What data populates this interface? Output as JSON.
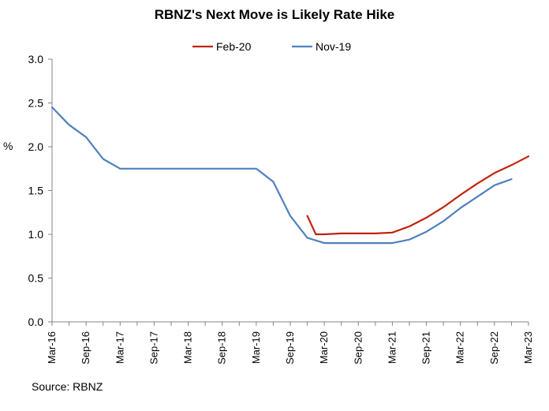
{
  "chart_data": {
    "type": "line",
    "title": "RBNZ's Next Move is Likely Rate Hike",
    "ylabel": "%",
    "xlabel": "",
    "ylim": [
      0,
      3.0
    ],
    "yticks": [
      "0.0",
      "0.5",
      "1.0",
      "1.5",
      "2.0",
      "2.5",
      "3.0"
    ],
    "ytick_values": [
      0,
      0.5,
      1.0,
      1.5,
      2.0,
      2.5,
      3.0
    ],
    "xrange_quarters": [
      0,
      28
    ],
    "xticks": [
      {
        "label": "Mar-16",
        "q": 0
      },
      {
        "label": "Sep-16",
        "q": 2
      },
      {
        "label": "Mar-17",
        "q": 4
      },
      {
        "label": "Sep-17",
        "q": 6
      },
      {
        "label": "Mar-18",
        "q": 8
      },
      {
        "label": "Sep-18",
        "q": 10
      },
      {
        "label": "Mar-19",
        "q": 12
      },
      {
        "label": "Sep-19",
        "q": 14
      },
      {
        "label": "Mar-20",
        "q": 16
      },
      {
        "label": "Sep-20",
        "q": 18
      },
      {
        "label": "Mar-21",
        "q": 20
      },
      {
        "label": "Sep-21",
        "q": 22
      },
      {
        "label": "Mar-22",
        "q": 24
      },
      {
        "label": "Sep-22",
        "q": 26
      },
      {
        "label": "Mar-23",
        "q": 28
      }
    ],
    "legend": "top-center",
    "series": [
      {
        "name": "Feb-20",
        "color": "#c0230f",
        "x": [
          15,
          15.5,
          16,
          17,
          18,
          19,
          20,
          21,
          22,
          23,
          24,
          25,
          26,
          27,
          28
        ],
        "values": [
          1.21,
          1.0,
          1.0,
          1.01,
          1.01,
          1.01,
          1.02,
          1.09,
          1.19,
          1.31,
          1.45,
          1.58,
          1.7,
          1.79,
          1.89
        ]
      },
      {
        "name": "Nov-19",
        "color": "#4f81bd",
        "x": [
          0,
          1,
          2,
          3,
          4,
          5,
          6,
          7,
          8,
          9,
          10,
          11,
          12,
          13,
          14,
          15,
          16,
          17,
          18,
          19,
          20,
          21,
          22,
          23,
          24,
          25,
          26,
          27
        ],
        "values": [
          2.45,
          2.25,
          2.11,
          1.86,
          1.75,
          1.75,
          1.75,
          1.75,
          1.75,
          1.75,
          1.75,
          1.75,
          1.75,
          1.6,
          1.21,
          0.96,
          0.9,
          0.9,
          0.9,
          0.9,
          0.9,
          0.94,
          1.03,
          1.15,
          1.3,
          1.43,
          1.56,
          1.63
        ]
      }
    ],
    "source": "Source: RBNZ"
  }
}
